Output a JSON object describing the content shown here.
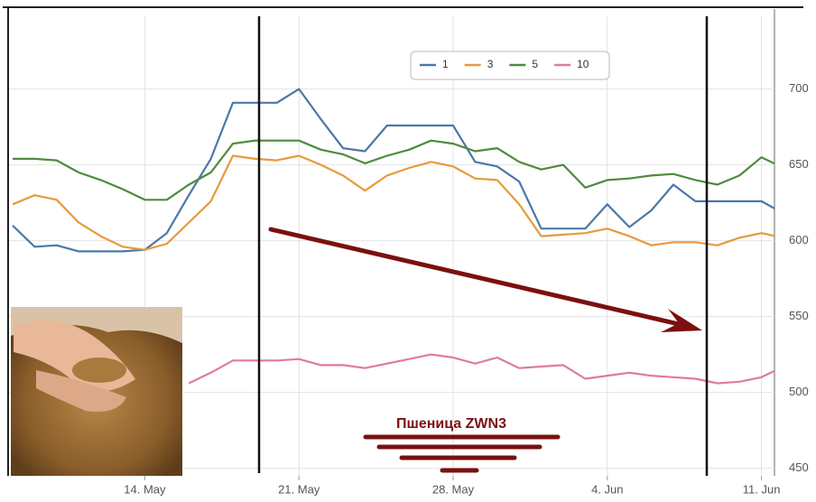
{
  "chart_data": {
    "type": "line",
    "title": "Пшеница ZWN3",
    "categories": [
      null,
      null,
      null,
      null,
      null,
      null,
      "14. May",
      null,
      null,
      null,
      null,
      null,
      null,
      "21. May",
      null,
      null,
      null,
      null,
      null,
      null,
      "28. May",
      null,
      null,
      null,
      null,
      null,
      null,
      "4. Jun",
      null,
      null,
      null,
      null,
      null,
      null,
      "11. Jun",
      null
    ],
    "series": [
      {
        "name": "1",
        "color": "#4a78a8",
        "values": [
          610,
          596,
          597,
          593,
          593,
          593,
          594,
          605,
          630,
          654,
          691,
          691,
          691,
          700,
          680,
          661,
          659,
          676,
          676,
          676,
          676,
          652,
          649,
          639,
          608,
          608,
          608,
          624,
          609,
          620,
          637,
          626,
          626,
          626,
          626,
          618
        ]
      },
      {
        "name": "3",
        "color": "#e8993e",
        "values": [
          624,
          630,
          627,
          612,
          603,
          596,
          594,
          598,
          612,
          626,
          656,
          654,
          653,
          656,
          650,
          643,
          633,
          643,
          648,
          652,
          649,
          641,
          640,
          624,
          603,
          604,
          605,
          608,
          603,
          597,
          599,
          599,
          597,
          602,
          605,
          602
        ]
      },
      {
        "name": "5",
        "color": "#4f8a3f",
        "values": [
          654,
          654,
          653,
          645,
          640,
          634,
          627,
          627,
          637,
          645,
          664,
          666,
          666,
          666,
          660,
          657,
          651,
          656,
          660,
          666,
          664,
          659,
          661,
          652,
          647,
          650,
          635,
          640,
          641,
          643,
          644,
          640,
          637,
          643,
          655,
          648
        ]
      },
      {
        "name": "10",
        "color": "#e07aa0",
        "values": [
          null,
          null,
          null,
          null,
          null,
          null,
          null,
          null,
          506,
          513,
          521,
          521,
          521,
          522,
          518,
          518,
          516,
          519,
          522,
          525,
          523,
          519,
          523,
          516,
          517,
          518,
          509,
          511,
          513,
          511,
          510,
          509,
          506,
          507,
          510,
          517
        ]
      }
    ],
    "ylim": [
      445,
      748
    ],
    "yticks": [
      450,
      500,
      550,
      600,
      650,
      700
    ],
    "grid": true
  }
}
